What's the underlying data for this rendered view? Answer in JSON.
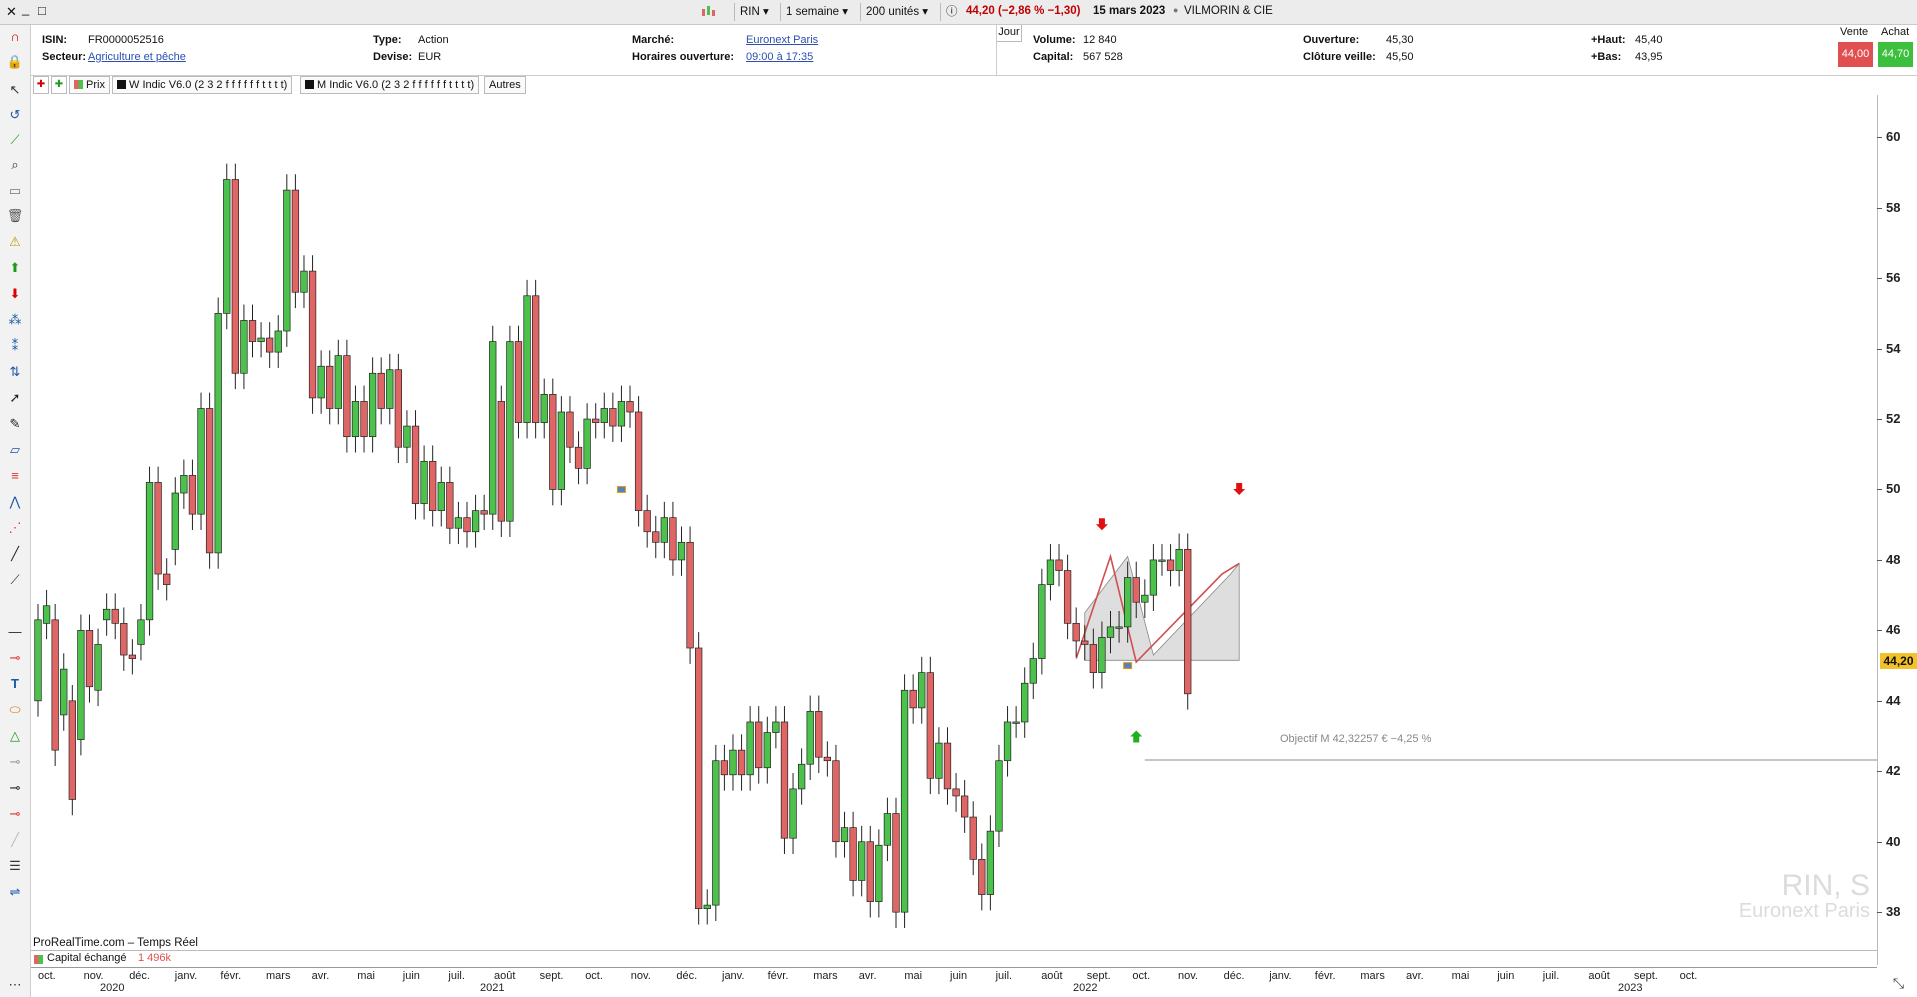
{
  "titlebar": {
    "close": "✕",
    "minimize": "_",
    "maximize": "□",
    "symbol": "RIN",
    "period": "1 semaine",
    "units": "200 unités",
    "quote": "44,20 (−2,86 % −1,30)",
    "date": "15 mars 2023",
    "company": "VILMORIN & CIE"
  },
  "info": {
    "isin_label": "ISIN:",
    "isin": "FR0000052516",
    "sector_label": "Secteur:",
    "sector": "Agriculture et pêche",
    "type_label": "Type:",
    "type": "Action",
    "currency_label": "Devise:",
    "currency": "EUR",
    "market_label": "Marché:",
    "market": "Euronext Paris",
    "hours_label": "Horaires ouverture:",
    "hours": "09:00 à 17:35",
    "day_tab": "Jour",
    "volume_label": "Volume:",
    "volume": "12 840",
    "capital_label": "Capital:",
    "capital": "567 528",
    "open_label": "Ouverture:",
    "open": "45,30",
    "prevclose_label": "Clôture veille:",
    "prevclose": "45,50",
    "high_label": "+Haut:",
    "high": "45,40",
    "low_label": "+Bas:",
    "low": "43,95",
    "sell_label": "Vente",
    "sell": "44,00",
    "buy_label": "Achat",
    "buy": "44,70"
  },
  "legend": {
    "price": "Prix",
    "w_indic": "W Indic V6.0 (2 3 2 f f f f f f t t t t)",
    "m_indic": "M Indic V6.0 (2 3 2 f f f f f f t t t t)",
    "others": "Autres"
  },
  "chart": {
    "watermark_symbol": "RIN, S",
    "watermark_market": "Euronext Paris",
    "source": "ProRealTime.com – Temps Réel",
    "objective": "Objectif M 42,32257 € −4,25 %",
    "current_price": "44,20",
    "volume_label": "Capital échangé",
    "volume_value": "1 496k",
    "colors": {
      "up": "#4cc24c",
      "down": "#e06666",
      "badge": "#f3c22a"
    }
  },
  "chart_data": {
    "type": "candlestick",
    "ylim": [
      36.5,
      61.2
    ],
    "yticks": [
      38,
      40,
      42,
      44,
      46,
      48,
      50,
      52,
      54,
      56,
      58,
      60
    ],
    "months": [
      "oct.",
      "nov.",
      "déc.",
      "janv.",
      "févr.",
      "mars",
      "avr.",
      "mai",
      "juin",
      "juil.",
      "août",
      "sept.",
      "oct.",
      "nov.",
      "déc.",
      "janv.",
      "févr.",
      "mars",
      "avr.",
      "mai",
      "juin",
      "juil.",
      "août",
      "sept.",
      "oct.",
      "nov.",
      "déc.",
      "janv.",
      "févr.",
      "mars",
      "avr.",
      "mai",
      "juin",
      "juil.",
      "août",
      "sept.",
      "oct."
    ],
    "years": [
      "2020",
      "2021",
      "2022",
      "2023"
    ],
    "closes": [
      46.3,
      46.7,
      42.6,
      44.9,
      41.2,
      46.0,
      44.4,
      45.6,
      46.6,
      46.2,
      45.3,
      45.2,
      46.3,
      50.2,
      47.6,
      47.3,
      49.9,
      50.4,
      49.3,
      52.3,
      48.2,
      55.0,
      58.8,
      53.3,
      54.8,
      54.2,
      54.3,
      53.9,
      54.5,
      58.5,
      55.6,
      56.2,
      52.6,
      53.5,
      52.3,
      53.8,
      51.5,
      52.5,
      51.5,
      53.3,
      52.3,
      53.4,
      51.2,
      51.8,
      49.6,
      50.8,
      49.4,
      50.2,
      48.9,
      49.2,
      48.8,
      49.4,
      49.3,
      54.2,
      49.1,
      54.2,
      51.9,
      55.5,
      51.9,
      52.7,
      50.0,
      52.2,
      51.2,
      50.6,
      52.0,
      51.9,
      52.3,
      51.8,
      52.5,
      52.2,
      49.4,
      48.8,
      48.5,
      49.2,
      48.0,
      48.5,
      45.5,
      38.1,
      38.2,
      42.3,
      41.9,
      42.6,
      41.9,
      43.4,
      42.1,
      43.1,
      43.4,
      40.1,
      41.5,
      42.2,
      43.7,
      42.4,
      42.3,
      40.0,
      40.4,
      38.9,
      40.0,
      38.3,
      39.9,
      40.8,
      38.0,
      44.3,
      43.8,
      44.8,
      41.8,
      42.8,
      41.5,
      41.3,
      40.7,
      39.5,
      38.5,
      40.3,
      42.3,
      43.4,
      43.4,
      44.5,
      45.2,
      47.3,
      48.0,
      47.7,
      46.2,
      45.7,
      45.6,
      44.8,
      45.8,
      46.1,
      46.1,
      47.5,
      46.8,
      47.0,
      48.0,
      48.0,
      47.7,
      48.3,
      44.2
    ],
    "opens": [
      44.0,
      46.2,
      46.3,
      43.6,
      44.0,
      42.9,
      46.0,
      44.3,
      46.3,
      46.6,
      46.2,
      45.3,
      45.6,
      46.3,
      50.2,
      47.6,
      48.3,
      49.9,
      50.4,
      49.3,
      52.3,
      48.2,
      55.0,
      58.8,
      53.3,
      54.8,
      54.2,
      54.3,
      53.9,
      54.5,
      58.5,
      55.6,
      56.2,
      52.6,
      53.5,
      52.3,
      53.8,
      51.5,
      52.5,
      51.5,
      53.3,
      52.3,
      53.4,
      51.2,
      51.8,
      49.6,
      50.8,
      49.4,
      50.2,
      48.9,
      49.2,
      48.8,
      49.4,
      49.3,
      52.5,
      49.1,
      54.2,
      51.9,
      55.5,
      51.9,
      52.7,
      50.0,
      52.2,
      51.2,
      50.6,
      52.0,
      51.9,
      52.3,
      51.8,
      52.5,
      52.2,
      49.4,
      48.8,
      48.5,
      49.2,
      48.0,
      48.5,
      45.5,
      38.1,
      38.2,
      42.3,
      41.9,
      42.6,
      41.9,
      43.4,
      42.1,
      43.1,
      43.4,
      40.1,
      41.5,
      42.2,
      43.7,
      42.4,
      42.3,
      40.0,
      40.4,
      38.9,
      40.0,
      38.3,
      39.9,
      40.8,
      38.0,
      44.3,
      43.8,
      44.8,
      41.8,
      42.8,
      41.5,
      41.3,
      40.7,
      39.5,
      38.5,
      40.3,
      42.3,
      43.4,
      43.4,
      44.5,
      45.2,
      47.3,
      48.0,
      47.7,
      46.2,
      45.7,
      45.6,
      44.8,
      45.8,
      46.1,
      46.1,
      47.5,
      46.8,
      47.0,
      48.0,
      48.0,
      47.7,
      48.3,
      45.3
    ]
  }
}
